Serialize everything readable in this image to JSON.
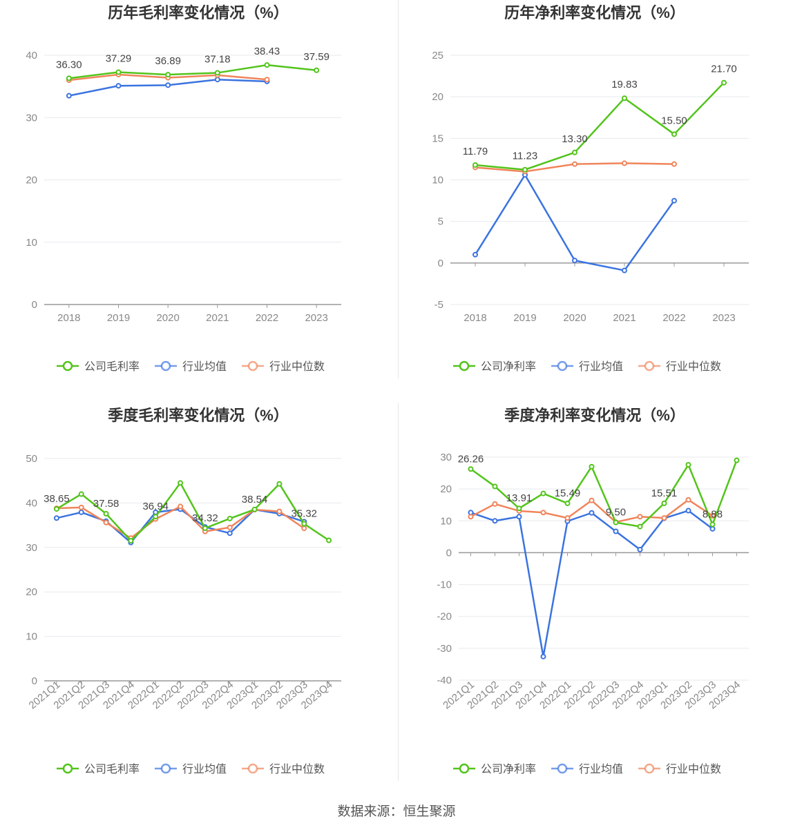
{
  "footer": {
    "source": "数据来源：恒生聚源"
  },
  "chart_data": [
    {
      "type": "line",
      "title": "历年毛利率变化情况（%）",
      "categories": [
        "2018",
        "2019",
        "2020",
        "2021",
        "2022",
        "2023"
      ],
      "ylim": [
        0,
        40
      ],
      "yticks": [
        0,
        10,
        20,
        30,
        40
      ],
      "grid": true,
      "legend": "bottom",
      "series": [
        {
          "name": "公司毛利率",
          "color": "#52c41a",
          "values": [
            36.3,
            37.29,
            36.89,
            37.18,
            38.43,
            37.59
          ],
          "labels": [
            "36.30",
            "37.29",
            "36.89",
            "37.18",
            "38.43",
            "37.59"
          ]
        },
        {
          "name": "行业均值",
          "color": "#3a73e0",
          "values": [
            33.5,
            35.1,
            35.2,
            36.1,
            35.8,
            null
          ]
        },
        {
          "name": "行业中位数",
          "color": "#f0845a",
          "values": [
            36.0,
            36.9,
            36.4,
            36.8,
            36.1,
            null
          ]
        }
      ]
    },
    {
      "type": "line",
      "title": "历年净利率变化情况（%）",
      "categories": [
        "2018",
        "2019",
        "2020",
        "2021",
        "2022",
        "2023"
      ],
      "ylim": [
        -5,
        25
      ],
      "yticks": [
        -5,
        0,
        5,
        10,
        15,
        20,
        25
      ],
      "grid": true,
      "legend": "bottom",
      "series": [
        {
          "name": "公司净利率",
          "color": "#52c41a",
          "values": [
            11.79,
            11.23,
            13.3,
            19.83,
            15.5,
            21.7
          ],
          "labels": [
            "11.79",
            "11.23",
            "13.30",
            "19.83",
            "15.50",
            "21.70"
          ]
        },
        {
          "name": "行业均值",
          "color": "#3a73e0",
          "values": [
            1.0,
            10.6,
            0.3,
            -0.9,
            7.5,
            null
          ]
        },
        {
          "name": "行业中位数",
          "color": "#f0845a",
          "values": [
            11.5,
            11.0,
            11.9,
            12.0,
            11.9,
            null
          ]
        }
      ]
    },
    {
      "type": "line",
      "title": "季度毛利率变化情况（%）",
      "categories": [
        "2021Q1",
        "2021Q2",
        "2021Q3",
        "2021Q4",
        "2022Q1",
        "2022Q2",
        "2022Q3",
        "2022Q4",
        "2023Q1",
        "2023Q2",
        "2023Q3",
        "2023Q4"
      ],
      "ylim": [
        0,
        50
      ],
      "yticks": [
        0,
        10,
        20,
        30,
        40,
        50
      ],
      "grid": true,
      "legend": "bottom",
      "rotate_xlabels": true,
      "series": [
        {
          "name": "公司毛利率",
          "color": "#52c41a",
          "values": [
            38.65,
            42.0,
            37.58,
            31.5,
            36.94,
            44.5,
            34.32,
            36.5,
            38.54,
            44.3,
            35.32,
            31.6
          ],
          "labels": [
            "38.65",
            "",
            "37.58",
            "",
            "36.94",
            "",
            "34.32",
            "",
            "38.54",
            "",
            "35.32",
            ""
          ]
        },
        {
          "name": "行业均值",
          "color": "#3a73e0",
          "values": [
            36.6,
            37.9,
            35.9,
            31.1,
            37.9,
            38.6,
            34.6,
            33.2,
            38.5,
            37.6,
            35.8,
            null
          ]
        },
        {
          "name": "行业中位数",
          "color": "#f0845a",
          "values": [
            38.8,
            39.0,
            35.6,
            32.1,
            36.4,
            39.2,
            33.6,
            34.5,
            38.5,
            38.1,
            34.3,
            null
          ]
        }
      ]
    },
    {
      "type": "line",
      "title": "季度净利率变化情况（%）",
      "categories": [
        "2021Q1",
        "2021Q2",
        "2021Q3",
        "2021Q4",
        "2022Q1",
        "2022Q2",
        "2022Q3",
        "2022Q4",
        "2023Q1",
        "2023Q2",
        "2023Q3",
        "2023Q4"
      ],
      "ylim": [
        -40,
        30
      ],
      "yticks": [
        -40,
        -30,
        -20,
        -10,
        0,
        10,
        20,
        30
      ],
      "grid": true,
      "legend": "bottom",
      "rotate_xlabels": true,
      "series": [
        {
          "name": "公司净利率",
          "color": "#52c41a",
          "values": [
            26.26,
            20.8,
            13.91,
            18.6,
            15.49,
            27.0,
            9.5,
            8.2,
            15.51,
            27.6,
            8.88,
            29.0
          ],
          "labels": [
            "26.26",
            "",
            "13.91",
            "",
            "15.49",
            "",
            "9.50",
            "",
            "15.51",
            "",
            "8.88",
            ""
          ]
        },
        {
          "name": "行业均值",
          "color": "#3a73e0",
          "values": [
            12.6,
            10.0,
            11.3,
            -32.6,
            9.9,
            12.5,
            6.7,
            1.0,
            10.8,
            13.2,
            7.5,
            null
          ]
        },
        {
          "name": "行业中位数",
          "color": "#f0845a",
          "values": [
            11.3,
            15.3,
            13.1,
            12.6,
            10.9,
            16.4,
            9.6,
            11.3,
            10.9,
            16.6,
            11.6,
            null
          ]
        }
      ]
    }
  ]
}
